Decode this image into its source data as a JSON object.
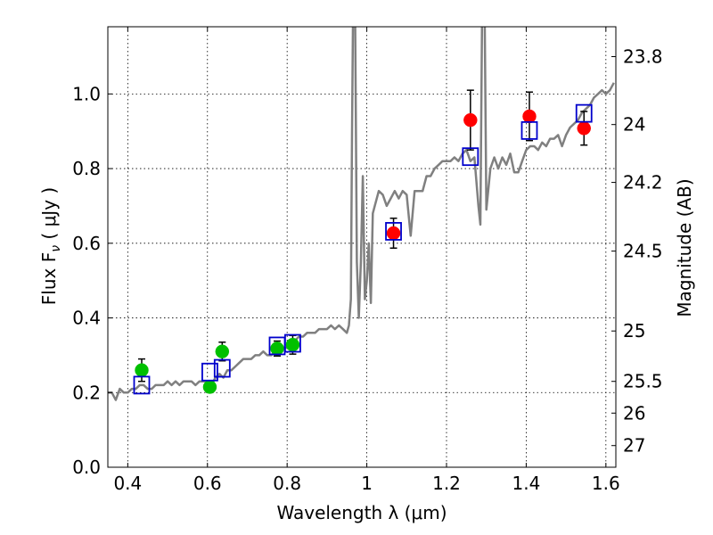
{
  "chart_data": {
    "type": "scatter",
    "title": "",
    "xlabel": "Wavelength  λ (μm)",
    "ylabel": "Flux  F",
    "ylabel_sub": "ν",
    "ylabel_unit": " ( μJy )",
    "ylabel_right": "Magnitude (AB)",
    "xlim": [
      0.35,
      1.625
    ],
    "ylim": [
      0.0,
      1.18
    ],
    "grid": true,
    "x_ticks": [
      {
        "v": 0.4,
        "label": "0.4"
      },
      {
        "v": 0.6,
        "label": "0.6"
      },
      {
        "v": 0.8,
        "label": "0.8"
      },
      {
        "v": 1.0,
        "label": "1"
      },
      {
        "v": 1.2,
        "label": "1.2"
      },
      {
        "v": 1.4,
        "label": "1.4"
      },
      {
        "v": 1.6,
        "label": "1.6"
      }
    ],
    "y_ticks": [
      {
        "v": 0.0,
        "label": "0.0"
      },
      {
        "v": 0.2,
        "label": "0.2"
      },
      {
        "v": 0.4,
        "label": "0.4"
      },
      {
        "v": 0.6,
        "label": "0.6"
      },
      {
        "v": 0.8,
        "label": "0.8"
      },
      {
        "v": 1.0,
        "label": "1.0"
      }
    ],
    "right_ticks": [
      {
        "label": "23.8",
        "flux": 1.1
      },
      {
        "label": "24",
        "flux": 0.918
      },
      {
        "label": "24.2",
        "flux": 0.763
      },
      {
        "label": "24.5",
        "flux": 0.579
      },
      {
        "label": "25",
        "flux": 0.365
      },
      {
        "label": "25.5",
        "flux": 0.23
      },
      {
        "label": "26",
        "flux": 0.145
      },
      {
        "label": "27",
        "flux": 0.058
      }
    ],
    "model_spectrum": {
      "color": "#808080",
      "x": [
        0.35,
        0.36,
        0.37,
        0.38,
        0.39,
        0.4,
        0.41,
        0.42,
        0.43,
        0.44,
        0.45,
        0.46,
        0.47,
        0.48,
        0.49,
        0.5,
        0.51,
        0.52,
        0.53,
        0.54,
        0.55,
        0.56,
        0.57,
        0.58,
        0.59,
        0.6,
        0.61,
        0.62,
        0.63,
        0.64,
        0.65,
        0.66,
        0.67,
        0.68,
        0.69,
        0.7,
        0.71,
        0.72,
        0.73,
        0.74,
        0.75,
        0.76,
        0.77,
        0.78,
        0.79,
        0.8,
        0.81,
        0.82,
        0.83,
        0.84,
        0.85,
        0.86,
        0.87,
        0.88,
        0.89,
        0.9,
        0.91,
        0.92,
        0.93,
        0.94,
        0.95,
        0.955,
        0.96,
        0.963,
        0.966,
        0.97,
        0.975,
        0.98,
        0.985,
        0.99,
        0.995,
        1.0,
        1.005,
        1.01,
        1.015,
        1.02,
        1.03,
        1.04,
        1.05,
        1.06,
        1.07,
        1.08,
        1.09,
        1.1,
        1.11,
        1.12,
        1.13,
        1.14,
        1.15,
        1.16,
        1.17,
        1.18,
        1.19,
        1.2,
        1.21,
        1.22,
        1.23,
        1.24,
        1.25,
        1.26,
        1.27,
        1.28,
        1.285,
        1.29,
        1.295,
        1.3,
        1.31,
        1.32,
        1.33,
        1.34,
        1.35,
        1.36,
        1.37,
        1.38,
        1.39,
        1.4,
        1.41,
        1.42,
        1.43,
        1.44,
        1.45,
        1.46,
        1.47,
        1.48,
        1.49,
        1.5,
        1.51,
        1.52,
        1.53,
        1.54,
        1.55,
        1.56,
        1.57,
        1.58,
        1.59,
        1.6,
        1.61,
        1.62
      ],
      "y": [
        0.2,
        0.2,
        0.18,
        0.21,
        0.2,
        0.2,
        0.21,
        0.21,
        0.22,
        0.22,
        0.21,
        0.21,
        0.22,
        0.22,
        0.22,
        0.23,
        0.22,
        0.23,
        0.22,
        0.23,
        0.23,
        0.23,
        0.22,
        0.23,
        0.23,
        0.23,
        0.22,
        0.24,
        0.25,
        0.24,
        0.26,
        0.26,
        0.27,
        0.28,
        0.29,
        0.29,
        0.29,
        0.3,
        0.3,
        0.31,
        0.3,
        0.3,
        0.31,
        0.31,
        0.32,
        0.32,
        0.33,
        0.34,
        0.35,
        0.35,
        0.36,
        0.36,
        0.36,
        0.37,
        0.37,
        0.37,
        0.38,
        0.37,
        0.38,
        0.37,
        0.36,
        0.38,
        0.45,
        0.9,
        1.3,
        1.3,
        0.55,
        0.4,
        0.55,
        0.78,
        0.45,
        0.5,
        0.6,
        0.44,
        0.68,
        0.7,
        0.74,
        0.73,
        0.7,
        0.72,
        0.74,
        0.72,
        0.74,
        0.73,
        0.62,
        0.74,
        0.74,
        0.74,
        0.78,
        0.78,
        0.8,
        0.81,
        0.82,
        0.82,
        0.82,
        0.83,
        0.82,
        0.84,
        0.85,
        0.82,
        0.83,
        0.7,
        0.65,
        1.3,
        1.3,
        0.69,
        0.8,
        0.83,
        0.8,
        0.83,
        0.81,
        0.84,
        0.79,
        0.79,
        0.82,
        0.85,
        0.86,
        0.86,
        0.85,
        0.87,
        0.86,
        0.88,
        0.88,
        0.89,
        0.86,
        0.89,
        0.91,
        0.92,
        0.93,
        0.95,
        0.96,
        0.97,
        0.99,
        1.0,
        1.01,
        1.0,
        1.01,
        1.03
      ]
    },
    "series": [
      {
        "marker": "circle",
        "color": "#00c000",
        "points": [
          {
            "x": 0.435,
            "y": 0.26,
            "err": 0.03
          },
          {
            "x": 0.606,
            "y": 0.215,
            "err": 0.015
          },
          {
            "x": 0.637,
            "y": 0.31,
            "err": 0.025
          },
          {
            "x": 0.775,
            "y": 0.318,
            "err": 0.02
          },
          {
            "x": 0.814,
            "y": 0.328,
            "err": 0.025
          }
        ]
      },
      {
        "marker": "circle",
        "color": "#ff0000",
        "points": [
          {
            "x": 1.067,
            "y": 0.627,
            "err": 0.04
          },
          {
            "x": 1.26,
            "y": 0.93,
            "err": 0.08
          },
          {
            "x": 1.408,
            "y": 0.94,
            "err": 0.065
          },
          {
            "x": 1.545,
            "y": 0.908,
            "err": 0.045
          }
        ]
      },
      {
        "marker": "square",
        "color": "#0000cc",
        "points": [
          {
            "x": 0.435,
            "y": 0.22
          },
          {
            "x": 0.606,
            "y": 0.255
          },
          {
            "x": 0.637,
            "y": 0.265
          },
          {
            "x": 0.775,
            "y": 0.325
          },
          {
            "x": 0.814,
            "y": 0.332
          },
          {
            "x": 1.067,
            "y": 0.632
          },
          {
            "x": 1.26,
            "y": 0.832
          },
          {
            "x": 1.408,
            "y": 0.902
          },
          {
            "x": 1.545,
            "y": 0.948
          }
        ]
      }
    ]
  }
}
